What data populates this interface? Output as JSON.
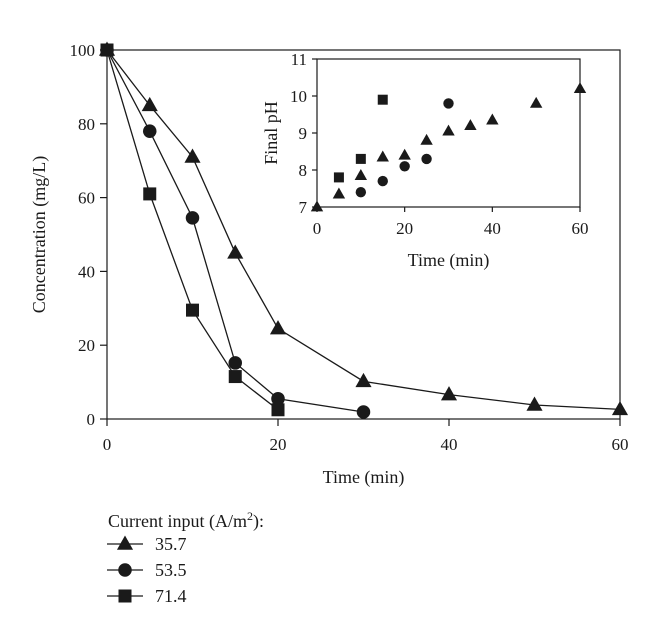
{
  "chart_data": [
    {
      "type": "line",
      "xlabel": "Time (min)",
      "ylabel": "Concentration (mg/L)",
      "xlim": [
        0,
        60
      ],
      "ylim": [
        0,
        100
      ],
      "xticks": [
        0,
        20,
        40,
        60
      ],
      "yticks": [
        0,
        20,
        40,
        60,
        80,
        100
      ],
      "grid": false,
      "legend": {
        "title_prefix": "Current input (A/m",
        "title_sup": "2",
        "title_suffix": "):",
        "placement": "bottom-left"
      },
      "series": [
        {
          "name": "35.7",
          "marker": "triangle",
          "x": [
            0,
            5,
            10,
            15,
            20,
            30,
            40,
            50,
            60
          ],
          "y": [
            100,
            85,
            71,
            45,
            24.5,
            10.2,
            6.6,
            3.8,
            2.6
          ]
        },
        {
          "name": "53.5",
          "marker": "circle",
          "x": [
            0,
            5,
            10,
            15,
            20,
            30
          ],
          "y": [
            100,
            78,
            54.5,
            15.2,
            5.5,
            1.9
          ]
        },
        {
          "name": "71.4",
          "marker": "square",
          "x": [
            0,
            5,
            10,
            15,
            20
          ],
          "y": [
            100,
            61,
            29.5,
            11.5,
            2.5
          ]
        }
      ]
    },
    {
      "type": "scatter",
      "xlabel": "Time (min)",
      "ylabel": "Final pH",
      "xlim": [
        0,
        60
      ],
      "ylim": [
        7,
        11
      ],
      "xticks": [
        0,
        20,
        40,
        60
      ],
      "yticks": [
        7,
        8,
        9,
        10,
        11
      ],
      "grid": false,
      "series": [
        {
          "marker": "triangle",
          "x": [
            0,
            5,
            10,
            15,
            20,
            25,
            30,
            35,
            40,
            50,
            60
          ],
          "y": [
            7.0,
            7.35,
            7.85,
            8.35,
            8.4,
            8.8,
            9.05,
            9.2,
            9.35,
            9.8,
            10.2
          ]
        },
        {
          "marker": "circle",
          "x": [
            10,
            15,
            20,
            25,
            30
          ],
          "y": [
            7.4,
            7.7,
            8.1,
            8.3,
            9.8
          ]
        },
        {
          "marker": "square",
          "x": [
            5,
            10,
            15
          ],
          "y": [
            7.8,
            8.3,
            9.9
          ]
        }
      ]
    }
  ]
}
